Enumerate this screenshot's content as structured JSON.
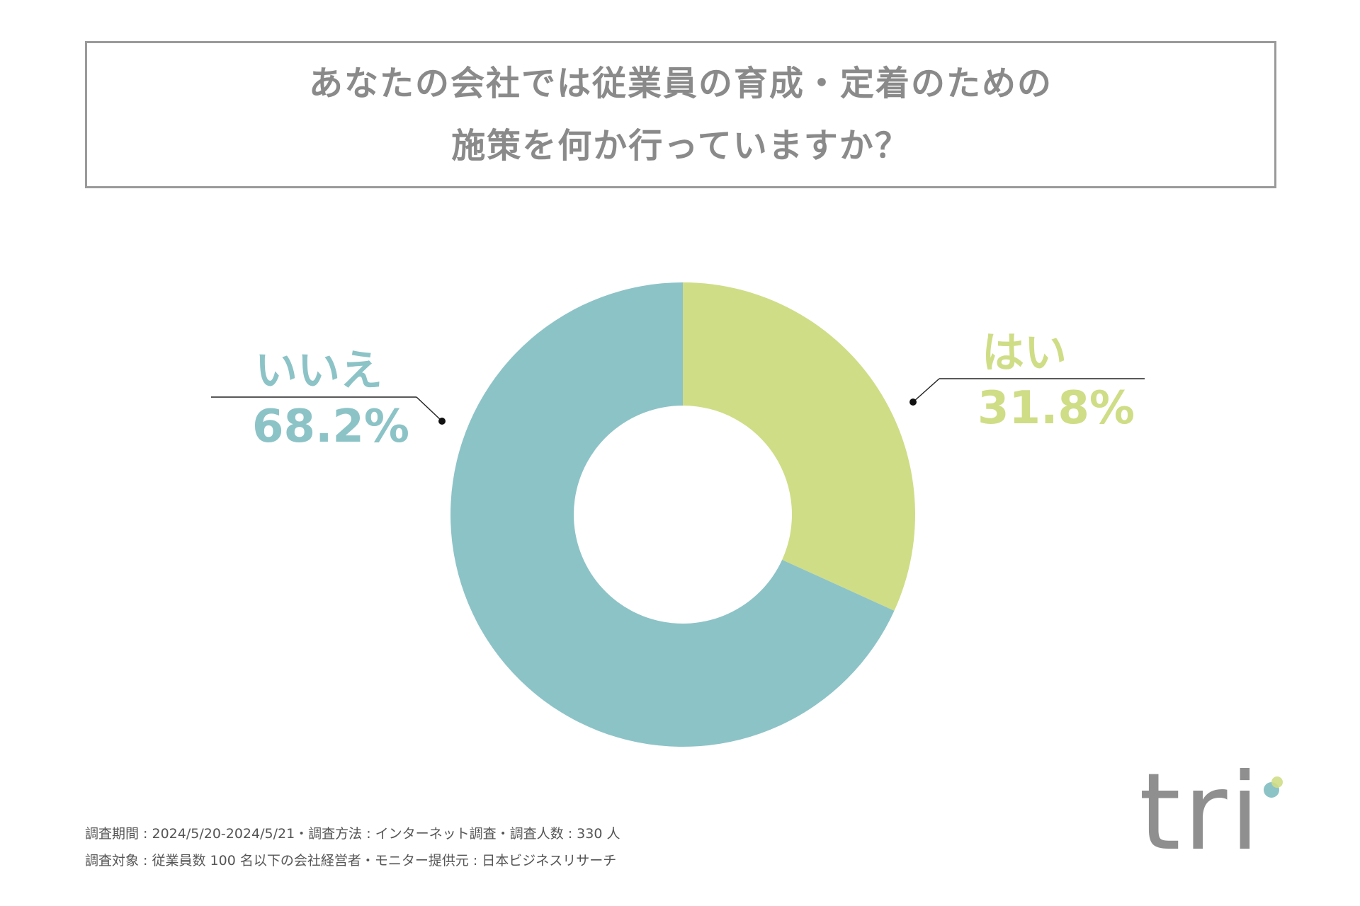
{
  "title": {
    "line1": "あなたの会社では従業員の育成・定着のための",
    "line2": "施策を何か行っていますか？"
  },
  "chart_data": {
    "type": "pie",
    "donut": true,
    "slices": [
      {
        "label": "はい",
        "value": 31.8,
        "display": "31.8%",
        "color": "#cfdd86"
      },
      {
        "label": "いいえ",
        "value": 68.2,
        "display": "68.2%",
        "color": "#8cc3c7"
      }
    ],
    "start": "12 o'clock, clockwise",
    "legend": "callout labels (left and right)"
  },
  "footnotes": {
    "line1": "調査期間 : 2024/5/20-2024/5/21・調査方法 : インターネット調査・調査人数 : 330 人",
    "line2": "調査対象 : 従業員数 100 名以下の会社経営者・モニター提供元 : 日本ビジネスリサーチ"
  },
  "logo": {
    "text": "tri",
    "colors": {
      "text": "#8f8f8f",
      "dot_blue": "#8cc3c7",
      "dot_green": "#cfdd86"
    }
  },
  "colors": {
    "title_text": "#8a8a8a",
    "title_border": "#9a9a9a",
    "yes": "#cfdd86",
    "no": "#8cc3c7"
  }
}
